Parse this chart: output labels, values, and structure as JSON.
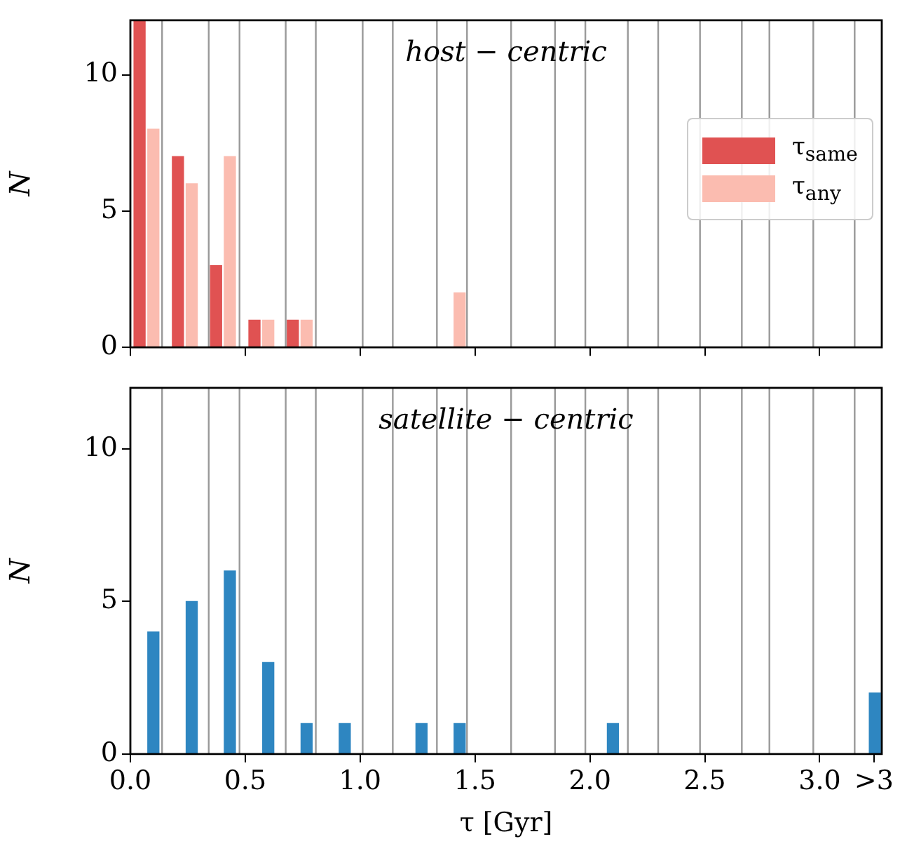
{
  "chart_data": [
    {
      "type": "bar",
      "ylabel": "N",
      "annotations": [
        "host − centric"
      ],
      "legend": "top right",
      "tick_labels": "y",
      "xlim": [
        0,
        3.27
      ],
      "xticks": [
        0,
        0.5,
        1,
        1.5,
        2,
        2.5,
        3,
        {
          "value": 3.236,
          "label": null
        }
      ],
      "ylim": [
        0,
        12
      ],
      "yticks": [
        0,
        5,
        10
      ],
      "series": [
        {
          "name": "τ$_{same}$",
          "color": "#e05252",
          "x": [
            0.04,
            0.207,
            0.373,
            0.54,
            0.707,
            0.873,
            1.04,
            1.207,
            1.373,
            1.54,
            1.707,
            1.873,
            2.04,
            2.207,
            2.373,
            2.54,
            2.707,
            2.873,
            3.04,
            3.18
          ],
          "values": [
            12,
            7,
            3,
            1,
            1,
            0,
            0,
            0,
            0,
            0,
            0,
            0,
            0,
            0,
            0,
            0,
            0,
            0,
            0,
            0
          ]
        },
        {
          "name": "τ$_{any}$",
          "color": "#fbbcb0",
          "x": [
            0.1,
            0.267,
            0.433,
            0.6,
            0.767,
            0.933,
            1.1,
            1.267,
            1.433,
            1.6,
            1.767,
            1.933,
            2.1,
            2.267,
            2.433,
            2.6,
            2.767,
            2.933,
            3.1,
            3.24
          ],
          "values": [
            8,
            6,
            7,
            1,
            1,
            0,
            0,
            0,
            2,
            0,
            0,
            0,
            0,
            0,
            0,
            0,
            0,
            0,
            0,
            0
          ]
        }
      ],
      "ref_lines": [
        {
          "axis": "x",
          "value": 0.138,
          "color": "#999999"
        },
        {
          "axis": "x",
          "value": 0.341,
          "color": "#999999"
        },
        {
          "axis": "x",
          "value": 0.475,
          "color": "#999999"
        },
        {
          "axis": "x",
          "value": 0.676,
          "color": "#999999"
        },
        {
          "axis": "x",
          "value": 0.807,
          "color": "#999999"
        },
        {
          "axis": "x",
          "value": 1.011,
          "color": "#999999"
        },
        {
          "axis": "x",
          "value": 1.142,
          "color": "#999999"
        },
        {
          "axis": "x",
          "value": 1.334,
          "color": "#999999"
        },
        {
          "axis": "x",
          "value": 1.465,
          "color": "#999999"
        },
        {
          "axis": "x",
          "value": 1.657,
          "color": "#999999"
        },
        {
          "axis": "x",
          "value": 1.848,
          "color": "#999999"
        },
        {
          "axis": "x",
          "value": 1.98,
          "color": "#999999"
        },
        {
          "axis": "x",
          "value": 2.165,
          "color": "#999999"
        },
        {
          "axis": "x",
          "value": 2.297,
          "color": "#999999"
        },
        {
          "axis": "x",
          "value": 2.479,
          "color": "#999999"
        },
        {
          "axis": "x",
          "value": 2.661,
          "color": "#999999"
        },
        {
          "axis": "x",
          "value": 2.781,
          "color": "#999999"
        },
        {
          "axis": "x",
          "value": 2.972,
          "color": "#999999"
        },
        {
          "axis": "x",
          "value": 3.152,
          "color": "#999999"
        }
      ]
    },
    {
      "type": "bar",
      "ylabel": "N",
      "xlabel": "τ [Gyr]",
      "annotations": [
        "satellite − centric"
      ],
      "xlim": [
        0,
        3.27
      ],
      "xticks": [
        {
          "value": 0,
          "label": "0.0"
        },
        0.5,
        {
          "value": 1,
          "label": "1.0"
        },
        1.5,
        {
          "value": 2,
          "label": "2.0"
        },
        2.5,
        {
          "value": 3,
          "label": "3.0"
        },
        {
          "value": 3.236,
          "label": ">3"
        }
      ],
      "ylim": [
        0,
        12
      ],
      "yticks": [
        0,
        5,
        10
      ],
      "series": [
        {
          "color": "#2e86c1",
          "x": [
            0.1,
            0.267,
            0.433,
            0.6,
            0.767,
            0.933,
            1.1,
            1.267,
            1.433,
            1.6,
            1.767,
            1.933,
            2.1,
            2.267,
            2.433,
            2.6,
            2.767,
            2.933,
            3.1,
            3.24
          ],
          "values": [
            4,
            5,
            6,
            3,
            1,
            1,
            0,
            1,
            1,
            0,
            0,
            0,
            1,
            0,
            0,
            0,
            0,
            0,
            0,
            2
          ]
        }
      ],
      "ref_lines": [
        {
          "axis": "x",
          "value": 0.138,
          "color": "#999999"
        },
        {
          "axis": "x",
          "value": 0.341,
          "color": "#999999"
        },
        {
          "axis": "x",
          "value": 0.475,
          "color": "#999999"
        },
        {
          "axis": "x",
          "value": 0.676,
          "color": "#999999"
        },
        {
          "axis": "x",
          "value": 0.807,
          "color": "#999999"
        },
        {
          "axis": "x",
          "value": 1.011,
          "color": "#999999"
        },
        {
          "axis": "x",
          "value": 1.142,
          "color": "#999999"
        },
        {
          "axis": "x",
          "value": 1.334,
          "color": "#999999"
        },
        {
          "axis": "x",
          "value": 1.465,
          "color": "#999999"
        },
        {
          "axis": "x",
          "value": 1.657,
          "color": "#999999"
        },
        {
          "axis": "x",
          "value": 1.848,
          "color": "#999999"
        },
        {
          "axis": "x",
          "value": 1.98,
          "color": "#999999"
        },
        {
          "axis": "x",
          "value": 2.165,
          "color": "#999999"
        },
        {
          "axis": "x",
          "value": 2.297,
          "color": "#999999"
        },
        {
          "axis": "x",
          "value": 2.479,
          "color": "#999999"
        },
        {
          "axis": "x",
          "value": 2.661,
          "color": "#999999"
        },
        {
          "axis": "x",
          "value": 2.781,
          "color": "#999999"
        },
        {
          "axis": "x",
          "value": 2.972,
          "color": "#999999"
        },
        {
          "axis": "x",
          "value": 3.152,
          "color": "#999999"
        }
      ]
    }
  ]
}
